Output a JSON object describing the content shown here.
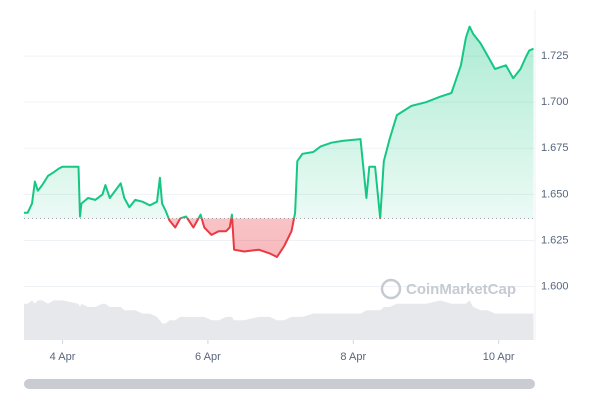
{
  "chart_data": {
    "type": "line",
    "x": [
      3.47,
      3.52,
      3.58,
      3.62,
      3.66,
      3.72,
      3.8,
      3.88,
      3.95,
      4.0,
      4.22,
      4.24,
      4.26,
      4.35,
      4.45,
      4.55,
      4.59,
      4.65,
      4.8,
      4.85,
      4.92,
      5.0,
      5.1,
      5.2,
      5.3,
      5.34,
      5.37,
      5.42,
      5.47,
      5.55,
      5.62,
      5.7,
      5.8,
      5.9,
      5.95,
      6.05,
      6.15,
      6.25,
      6.3,
      6.33,
      6.36,
      6.5,
      6.7,
      6.85,
      6.95,
      7.05,
      7.15,
      7.2,
      7.23,
      7.3,
      7.45,
      7.55,
      7.7,
      7.85,
      8.1,
      8.18,
      8.22,
      8.3,
      8.37,
      8.42,
      8.5,
      8.6,
      8.8,
      9.0,
      9.2,
      9.35,
      9.42,
      9.48,
      9.55,
      9.6,
      9.65,
      9.75,
      9.85,
      9.95,
      10.1,
      10.2,
      10.3,
      10.38,
      10.42,
      10.48
    ],
    "series": [
      {
        "color": "#16c784",
        "color_below": "#ea3943",
        "values": [
          1.64,
          1.64,
          1.645,
          1.657,
          1.652,
          1.655,
          1.66,
          1.662,
          1.664,
          1.665,
          1.665,
          1.638,
          1.645,
          1.648,
          1.647,
          1.65,
          1.655,
          1.648,
          1.656,
          1.648,
          1.643,
          1.647,
          1.646,
          1.644,
          1.646,
          1.659,
          1.645,
          1.641,
          1.636,
          1.632,
          1.637,
          1.638,
          1.632,
          1.639,
          1.632,
          1.628,
          1.63,
          1.63,
          1.632,
          1.639,
          1.62,
          1.619,
          1.62,
          1.618,
          1.616,
          1.622,
          1.63,
          1.64,
          1.668,
          1.672,
          1.673,
          1.676,
          1.678,
          1.679,
          1.68,
          1.648,
          1.665,
          1.665,
          1.637,
          1.668,
          1.68,
          1.693,
          1.698,
          1.7,
          1.703,
          1.705,
          1.713,
          1.72,
          1.735,
          1.741,
          1.737,
          1.732,
          1.725,
          1.718,
          1.72,
          1.713,
          1.718,
          1.725,
          1.728,
          1.729
        ]
      },
      {
        "color": "#e6e8ec",
        "axis": "y2",
        "values": [
          11,
          11,
          12,
          11,
          12,
          12,
          11,
          12,
          12,
          12,
          11,
          10,
          11,
          10,
          10,
          11,
          11,
          10,
          10,
          9,
          9,
          9,
          8,
          8,
          7,
          6,
          5,
          5,
          6,
          6,
          7,
          7,
          7,
          7,
          7,
          6,
          6,
          7,
          7,
          7,
          6,
          6,
          7,
          7,
          6,
          6,
          7,
          7,
          7,
          7,
          8,
          8,
          8,
          8,
          8,
          9,
          9,
          9,
          9,
          10,
          10,
          11,
          11,
          11,
          12,
          11,
          11,
          11,
          11,
          12,
          10,
          9,
          9,
          8,
          8,
          8,
          8,
          8,
          8,
          8
        ]
      }
    ],
    "baseline": 1.637,
    "xlim": [
      3.47,
      10.5
    ],
    "xticks": [
      {
        "value": 4,
        "label": "4 Apr"
      },
      {
        "value": 6,
        "label": "6 Apr"
      },
      {
        "value": 8,
        "label": "8 Apr"
      },
      {
        "value": 10,
        "label": "10 Apr"
      }
    ],
    "ylim": [
      1.571,
      1.75
    ],
    "yticks": [
      {
        "value": 1.6,
        "label": "1.600"
      },
      {
        "value": 1.625,
        "label": "1.625"
      },
      {
        "value": 1.65,
        "label": "1.650"
      },
      {
        "value": 1.675,
        "label": "1.675"
      },
      {
        "value": 1.7,
        "label": "1.700"
      },
      {
        "value": 1.725,
        "label": "1.725"
      }
    ],
    "y2lim": [
      0,
      100
    ],
    "grid": true,
    "watermark": "CoinMarketCap"
  }
}
